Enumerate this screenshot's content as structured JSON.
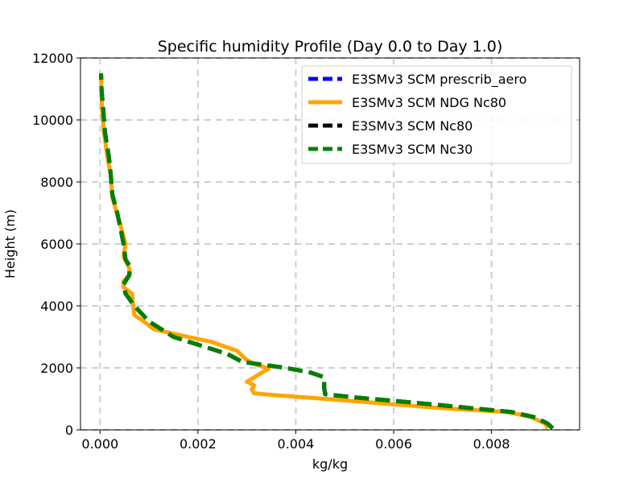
{
  "chart_data": {
    "type": "line",
    "title": "Specific humidity Profile (Day 0.0 to Day 1.0)",
    "xlabel": "kg/kg",
    "ylabel": "Height (m)",
    "xlim": [
      -0.0004,
      0.0098
    ],
    "ylim": [
      0,
      12000
    ],
    "xticks": [
      0,
      0.002,
      0.004,
      0.006,
      0.008
    ],
    "xtick_labels": [
      "0.000",
      "0.002",
      "0.004",
      "0.006",
      "0.008"
    ],
    "yticks": [
      0,
      2000,
      4000,
      6000,
      8000,
      10000,
      12000
    ],
    "ytick_labels": [
      "0",
      "2000",
      "4000",
      "6000",
      "8000",
      "10000",
      "12000"
    ],
    "grid": true,
    "legend_position": "top-right",
    "series": [
      {
        "name": "E3SMv3 SCM prescrib_aero",
        "color": "#0000ff",
        "style": "dashed",
        "points": [
          [
            0.00925,
            50
          ],
          [
            0.00915,
            200
          ],
          [
            0.0089,
            400
          ],
          [
            0.0084,
            580
          ],
          [
            0.0076,
            700
          ],
          [
            0.0068,
            820
          ],
          [
            0.0059,
            950
          ],
          [
            0.0052,
            1050
          ],
          [
            0.0046,
            1150
          ],
          [
            0.00458,
            1350
          ],
          [
            0.00458,
            1700
          ],
          [
            0.0043,
            1850
          ],
          [
            0.0038,
            2000
          ],
          [
            0.0031,
            2150
          ],
          [
            0.0029,
            2200
          ],
          [
            0.0026,
            2450
          ],
          [
            0.0021,
            2700
          ],
          [
            0.0015,
            3000
          ],
          [
            0.001,
            3500
          ],
          [
            0.0007,
            4000
          ],
          [
            0.00052,
            4400
          ],
          [
            0.00048,
            4700
          ],
          [
            0.0006,
            5000
          ],
          [
            0.0006,
            5300
          ],
          [
            0.00052,
            5500
          ],
          [
            0.00048,
            6000
          ],
          [
            0.00042,
            6500
          ],
          [
            0.00035,
            7000
          ],
          [
            0.00025,
            7600
          ],
          [
            0.00022,
            8200
          ],
          [
            0.00018,
            8800
          ],
          [
            0.0001,
            9600
          ],
          [
            6e-05,
            10400
          ],
          [
            3e-05,
            11000
          ],
          [
            2e-05,
            11500
          ]
        ]
      },
      {
        "name": "E3SMv3 SCM NDG Nc80",
        "color": "#ffa500",
        "style": "solid",
        "points": [
          [
            0.00915,
            50
          ],
          [
            0.0091,
            200
          ],
          [
            0.0088,
            420
          ],
          [
            0.0083,
            580
          ],
          [
            0.007,
            700
          ],
          [
            0.0058,
            850
          ],
          [
            0.0046,
            1000
          ],
          [
            0.0035,
            1130
          ],
          [
            0.00315,
            1180
          ],
          [
            0.0031,
            1300
          ],
          [
            0.00315,
            1440
          ],
          [
            0.003,
            1550
          ],
          [
            0.00345,
            1980
          ],
          [
            0.0032,
            2100
          ],
          [
            0.003,
            2250
          ],
          [
            0.0028,
            2550
          ],
          [
            0.00225,
            2850
          ],
          [
            0.00165,
            3050
          ],
          [
            0.0011,
            3250
          ],
          [
            0.00085,
            3550
          ],
          [
            0.0007,
            3700
          ],
          [
            0.00068,
            4000
          ],
          [
            0.00065,
            4400
          ],
          [
            0.00048,
            4600
          ],
          [
            0.00048,
            4800
          ],
          [
            0.0006,
            5000
          ],
          [
            0.0006,
            5200
          ],
          [
            0.00048,
            5600
          ],
          [
            0.00052,
            6000
          ],
          [
            0.00045,
            6400
          ],
          [
            0.0004,
            6700
          ],
          [
            0.00025,
            7500
          ],
          [
            0.00022,
            8200
          ],
          [
            0.00015,
            8800
          ],
          [
            8e-05,
            9600
          ],
          [
            4e-05,
            10400
          ],
          [
            3e-05,
            11000
          ],
          [
            2e-05,
            11500
          ]
        ]
      },
      {
        "name": "E3SMv3 SCM Nc80",
        "color": "#000000",
        "style": "dashed",
        "points": [
          [
            0.00925,
            50
          ],
          [
            0.00915,
            200
          ],
          [
            0.0089,
            400
          ],
          [
            0.0084,
            580
          ],
          [
            0.0076,
            700
          ],
          [
            0.0068,
            820
          ],
          [
            0.0059,
            950
          ],
          [
            0.0052,
            1050
          ],
          [
            0.0046,
            1150
          ],
          [
            0.00458,
            1350
          ],
          [
            0.00458,
            1700
          ],
          [
            0.0043,
            1850
          ],
          [
            0.0038,
            2000
          ],
          [
            0.0031,
            2150
          ],
          [
            0.0029,
            2200
          ],
          [
            0.0026,
            2450
          ],
          [
            0.0021,
            2700
          ],
          [
            0.0015,
            3000
          ],
          [
            0.001,
            3500
          ],
          [
            0.0007,
            4000
          ],
          [
            0.00052,
            4400
          ],
          [
            0.00048,
            4700
          ],
          [
            0.0006,
            5000
          ],
          [
            0.0006,
            5300
          ],
          [
            0.00052,
            5500
          ],
          [
            0.00048,
            6000
          ],
          [
            0.00042,
            6500
          ],
          [
            0.00035,
            7000
          ],
          [
            0.00025,
            7600
          ],
          [
            0.00022,
            8200
          ],
          [
            0.00018,
            8800
          ],
          [
            0.0001,
            9600
          ],
          [
            6e-05,
            10400
          ],
          [
            3e-05,
            11000
          ],
          [
            2e-05,
            11500
          ]
        ]
      },
      {
        "name": "E3SMv3 SCM Nc30",
        "color": "#008000",
        "style": "dashed",
        "points": [
          [
            0.00925,
            50
          ],
          [
            0.00915,
            200
          ],
          [
            0.0089,
            400
          ],
          [
            0.0084,
            580
          ],
          [
            0.0076,
            700
          ],
          [
            0.0068,
            820
          ],
          [
            0.0059,
            950
          ],
          [
            0.0052,
            1050
          ],
          [
            0.0046,
            1150
          ],
          [
            0.00458,
            1350
          ],
          [
            0.00458,
            1700
          ],
          [
            0.0043,
            1850
          ],
          [
            0.0038,
            2000
          ],
          [
            0.0031,
            2150
          ],
          [
            0.0029,
            2200
          ],
          [
            0.0026,
            2450
          ],
          [
            0.0021,
            2700
          ],
          [
            0.0015,
            3000
          ],
          [
            0.001,
            3500
          ],
          [
            0.0007,
            4000
          ],
          [
            0.00052,
            4400
          ],
          [
            0.00048,
            4700
          ],
          [
            0.0006,
            5000
          ],
          [
            0.0006,
            5300
          ],
          [
            0.00052,
            5500
          ],
          [
            0.00048,
            6000
          ],
          [
            0.00042,
            6500
          ],
          [
            0.00035,
            7000
          ],
          [
            0.00025,
            7600
          ],
          [
            0.00022,
            8200
          ],
          [
            0.00018,
            8800
          ],
          [
            0.0001,
            9600
          ],
          [
            6e-05,
            10400
          ],
          [
            3e-05,
            11000
          ],
          [
            2e-05,
            11500
          ]
        ]
      }
    ]
  }
}
